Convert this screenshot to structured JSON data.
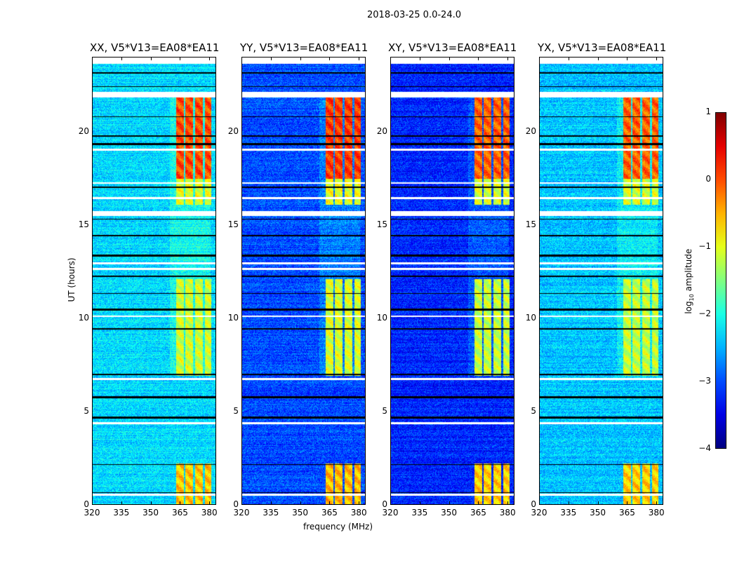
{
  "suptitle": "2018-03-25 0.0-24.0",
  "xlabel": "frequency (MHz)",
  "ylabel": "UT (hours)",
  "colorbar": {
    "label_main": "log",
    "label_sub": "10",
    "label_rest": " amplitude",
    "ticks": [
      "1",
      "0",
      "−1",
      "−2",
      "−3",
      "−4"
    ],
    "tick_values": [
      1,
      0,
      -1,
      -2,
      -3,
      -4
    ],
    "range": [
      -4,
      1
    ],
    "colormap": "jet"
  },
  "chart_data": {
    "type": "heatmap",
    "title": "2018-03-25 0.0-24.0",
    "xlabel": "frequency (MHz)",
    "ylabel": "UT (hours)",
    "xlim": [
      320,
      383.5
    ],
    "ylim": [
      0,
      24
    ],
    "xticks": [
      "320",
      "335",
      "350",
      "365",
      "380"
    ],
    "xtick_values": [
      320,
      335,
      350,
      365,
      380
    ],
    "yticks": [
      "0",
      "5",
      "10",
      "15",
      "20"
    ],
    "ytick_values": [
      0,
      5,
      10,
      15,
      20
    ],
    "panels": [
      {
        "title": "XX, V5*V13=EA08*EA11",
        "background_log_amp": -2.3,
        "rfi_peak_log_amp": 0.4
      },
      {
        "title": "YY, V5*V13=EA08*EA11",
        "background_log_amp": -3.0,
        "rfi_peak_log_amp": 0.5
      },
      {
        "title": "XY, V5*V13=EA08*EA11",
        "background_log_amp": -3.2,
        "rfi_peak_log_amp": 0.3
      },
      {
        "title": "YX, V5*V13=EA08*EA11",
        "background_log_amp": -2.4,
        "rfi_peak_log_amp": 0.3
      }
    ],
    "rfi_channels_mhz": [
      [
        363,
        367
      ],
      [
        368,
        372
      ],
      [
        373,
        377
      ],
      [
        378,
        381.5
      ]
    ],
    "rfi_time_intervals_h": [
      [
        0,
        2.2,
        -0.6
      ],
      [
        6.9,
        12.1,
        -1.1
      ],
      [
        16.1,
        17.5,
        -1.0
      ],
      [
        17.5,
        22,
        0.0
      ]
    ],
    "flagged_white_h": [
      [
        23.65,
        24
      ],
      [
        21.85,
        22.15
      ],
      [
        15.5,
        15.75
      ],
      [
        6.65,
        6.8
      ],
      [
        4.3,
        4.4
      ],
      [
        0.45,
        0.55
      ],
      [
        12.6,
        12.7
      ],
      [
        12.9,
        13.0
      ],
      [
        10.05,
        10.15
      ],
      [
        17.2,
        17.3
      ],
      [
        16.4,
        16.5
      ],
      [
        19.0,
        19.1
      ]
    ],
    "flagged_black_h": [
      [
        23.15,
        23.2
      ],
      [
        22.4,
        22.45
      ],
      [
        20.8,
        20.85
      ],
      [
        19.75,
        19.8
      ],
      [
        19.3,
        19.4
      ],
      [
        17.0,
        17.05
      ],
      [
        15.3,
        15.35
      ],
      [
        14.4,
        14.45
      ],
      [
        13.3,
        13.4
      ],
      [
        12.2,
        12.3
      ],
      [
        11.3,
        11.35
      ],
      [
        10.4,
        10.5
      ],
      [
        9.4,
        9.45
      ],
      [
        6.95,
        7.0
      ],
      [
        5.7,
        5.8
      ],
      [
        4.6,
        4.7
      ],
      [
        2.1,
        2.15
      ],
      [
        0.6,
        0.65
      ]
    ]
  }
}
